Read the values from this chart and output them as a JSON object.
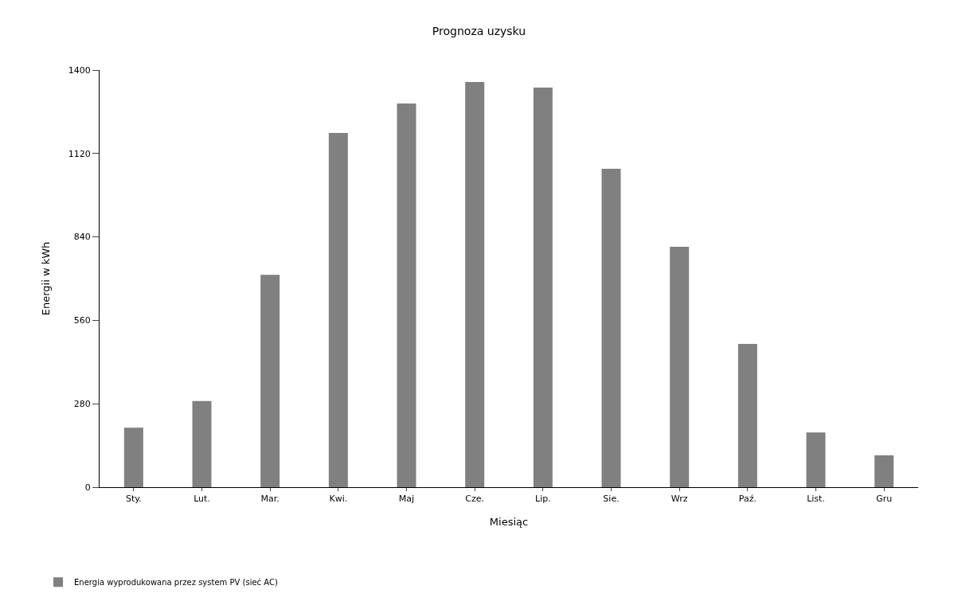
{
  "chart_data": {
    "type": "bar",
    "title": "Prognoza uzysku",
    "xlabel": "Miesiąc",
    "ylabel": "Energii w kWh",
    "categories": [
      "Sty.",
      "Lut.",
      "Mar.",
      "Kwi.",
      "Maj",
      "Cze.",
      "Lip.",
      "Sie.",
      "Wrz",
      "Paź.",
      "List.",
      "Gru"
    ],
    "series": [
      {
        "name": "Energia wyprodukowana przez system PV (sieć AC)",
        "color": "#808080",
        "values": [
          200,
          289,
          713,
          1189,
          1288,
          1360,
          1341,
          1069,
          807,
          481,
          184,
          107
        ]
      }
    ],
    "ylim": [
      0,
      1400
    ],
    "yticks": [
      0,
      280,
      560,
      840,
      1120,
      1400
    ],
    "grid": false,
    "legend": "bottom left"
  }
}
